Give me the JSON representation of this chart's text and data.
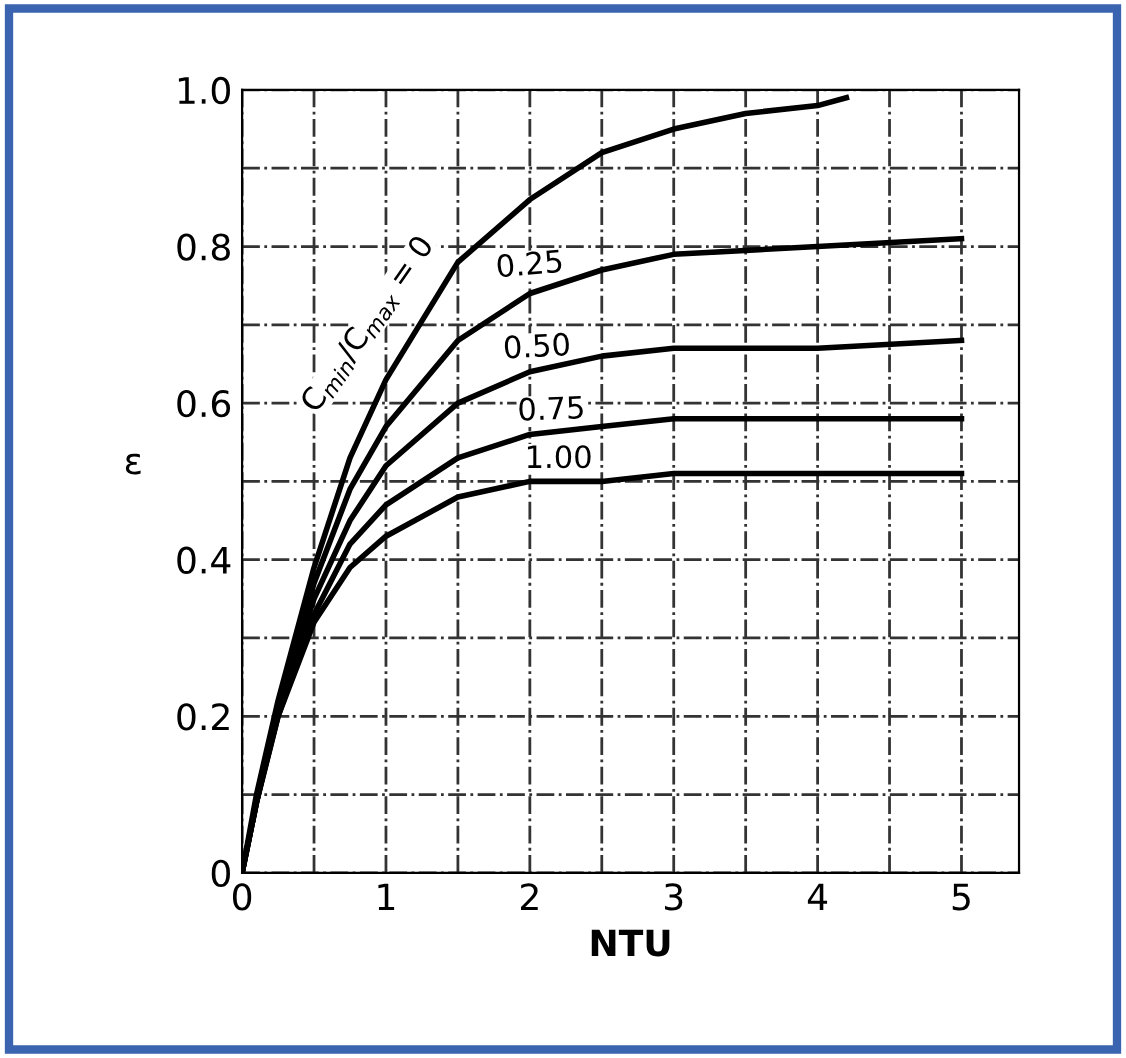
{
  "chart_data": {
    "type": "line",
    "xlabel": "NTU",
    "ylabel": "ε",
    "xlim": [
      0,
      5.4
    ],
    "ylim": [
      0,
      1.0
    ],
    "xticks": [
      0,
      {
        "value": 0.5,
        "label": null
      },
      1,
      {
        "value": 1.5,
        "label": null
      },
      2,
      {
        "value": 2.5,
        "label": null
      },
      3,
      {
        "value": 3.5,
        "label": null
      },
      4,
      {
        "value": 4.5,
        "label": null
      },
      5
    ],
    "yticks": [
      0,
      {
        "value": 0.1,
        "label": null
      },
      {
        "value": 0.2,
        "label": "0.2"
      },
      {
        "value": 0.3,
        "label": null
      },
      {
        "value": 0.4,
        "label": "0.4"
      },
      {
        "value": 0.5,
        "label": null
      },
      {
        "value": 0.6,
        "label": "0.6"
      },
      {
        "value": 0.7,
        "label": null
      },
      {
        "value": 0.8,
        "label": "0.8"
      },
      {
        "value": 0.9,
        "label": null
      },
      {
        "value": 1.0,
        "label": "1.0"
      }
    ],
    "grid": true,
    "marker": "none",
    "line_style": "solid",
    "series": [
      {
        "name": "C$_{min}$/C$_{max}$ = 0",
        "color": "#000000",
        "x": [
          0,
          0.1,
          0.25,
          0.5,
          0.75,
          1,
          1.5,
          2,
          2.5,
          3,
          3.5,
          4,
          4.2
        ],
        "values": [
          0,
          0.1,
          0.22,
          0.39,
          0.53,
          0.63,
          0.78,
          0.86,
          0.92,
          0.95,
          0.97,
          0.98,
          0.99
        ]
      },
      {
        "name": "0.25",
        "color": "#000000",
        "x": [
          0,
          0.1,
          0.25,
          0.5,
          0.75,
          1,
          1.5,
          2,
          2.5,
          3,
          4,
          5
        ],
        "values": [
          0,
          0.09,
          0.21,
          0.37,
          0.49,
          0.57,
          0.68,
          0.74,
          0.77,
          0.79,
          0.8,
          0.81
        ]
      },
      {
        "name": "0.50",
        "color": "#000000",
        "x": [
          0,
          0.1,
          0.25,
          0.5,
          0.75,
          1,
          1.5,
          2,
          2.5,
          3,
          4,
          5
        ],
        "values": [
          0,
          0.09,
          0.21,
          0.35,
          0.45,
          0.52,
          0.6,
          0.64,
          0.66,
          0.67,
          0.67,
          0.68
        ]
      },
      {
        "name": "0.75",
        "color": "#000000",
        "x": [
          0,
          0.1,
          0.25,
          0.5,
          0.75,
          1,
          1.5,
          2,
          2.5,
          3,
          4,
          5
        ],
        "values": [
          0,
          0.09,
          0.2,
          0.33,
          0.42,
          0.47,
          0.53,
          0.56,
          0.57,
          0.58,
          0.58,
          0.58
        ]
      },
      {
        "name": "1.00",
        "color": "#000000",
        "x": [
          0,
          0.1,
          0.25,
          0.5,
          0.75,
          1,
          1.5,
          2,
          2.5,
          3,
          4,
          5
        ],
        "values": [
          0,
          0.09,
          0.2,
          0.32,
          0.39,
          0.43,
          0.48,
          0.5,
          0.5,
          0.51,
          0.51,
          0.51
        ]
      }
    ]
  }
}
